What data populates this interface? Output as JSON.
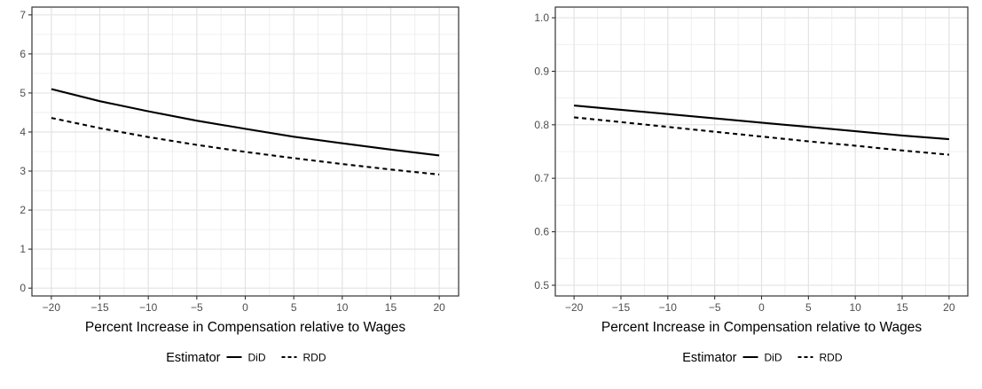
{
  "chart_data": [
    {
      "type": "line",
      "xlabel": "Percent Increase in Compensation relative to Wages",
      "ylabel": "",
      "xlim": [
        -22,
        22
      ],
      "ylim": [
        -0.2,
        7.2
      ],
      "xticks": [
        -20,
        -15,
        -10,
        -5,
        0,
        5,
        10,
        15,
        20
      ],
      "xtick_labels": [
        "−20",
        "−15",
        "−10",
        "−5",
        "0",
        "5",
        "10",
        "15",
        "20"
      ],
      "yticks": [
        0,
        1,
        2,
        3,
        4,
        5,
        6,
        7
      ],
      "ytick_labels": [
        "0",
        "1",
        "2",
        "3",
        "4",
        "5",
        "6",
        "7"
      ],
      "grid": true,
      "x": [
        -20,
        -15,
        -10,
        -5,
        0,
        5,
        10,
        15,
        20
      ],
      "series": [
        {
          "name": "DiD",
          "style": "solid",
          "values": [
            5.1,
            4.79,
            4.53,
            4.29,
            4.08,
            3.88,
            3.71,
            3.55,
            3.4
          ]
        },
        {
          "name": "RDD",
          "style": "dashed",
          "values": [
            4.36,
            4.1,
            3.87,
            3.67,
            3.49,
            3.33,
            3.18,
            3.04,
            2.91
          ]
        }
      ],
      "legend": {
        "title": "Estimator",
        "placement": "bottom"
      }
    },
    {
      "type": "line",
      "xlabel": "Percent Increase in Compensation relative to Wages",
      "ylabel": "",
      "xlim": [
        -22,
        22
      ],
      "ylim": [
        0.48,
        1.02
      ],
      "xticks": [
        -20,
        -15,
        -10,
        -5,
        0,
        5,
        10,
        15,
        20
      ],
      "xtick_labels": [
        "−20",
        "−15",
        "−10",
        "−5",
        "0",
        "5",
        "10",
        "15",
        "20"
      ],
      "yticks": [
        0.5,
        0.6,
        0.7,
        0.8,
        0.9,
        1.0
      ],
      "ytick_labels": [
        "0.5",
        "0.6",
        "0.7",
        "0.8",
        "0.9",
        "1.0"
      ],
      "grid": true,
      "x": [
        -20,
        -15,
        -10,
        -5,
        0,
        5,
        10,
        15,
        20
      ],
      "series": [
        {
          "name": "DiD",
          "style": "solid",
          "values": [
            0.836,
            0.828,
            0.82,
            0.812,
            0.804,
            0.796,
            0.788,
            0.78,
            0.773
          ]
        },
        {
          "name": "RDD",
          "style": "dashed",
          "values": [
            0.814,
            0.805,
            0.796,
            0.787,
            0.778,
            0.769,
            0.761,
            0.752,
            0.744
          ]
        }
      ],
      "legend": {
        "title": "Estimator",
        "placement": "bottom"
      }
    }
  ]
}
